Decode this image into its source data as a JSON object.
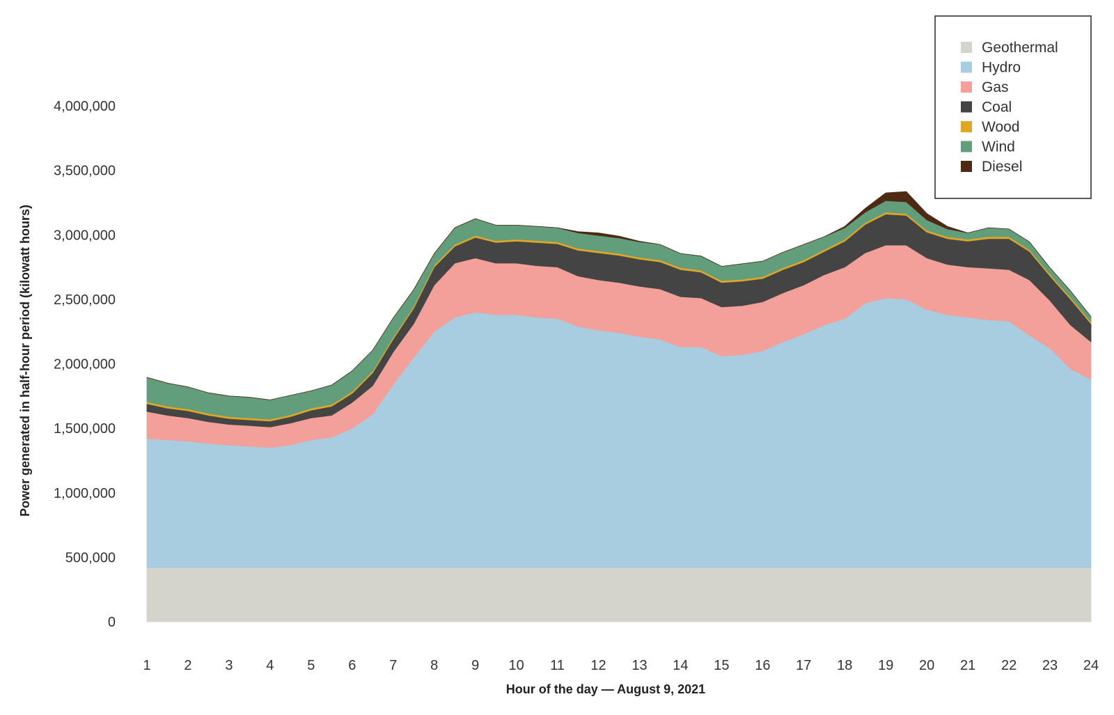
{
  "chart_data": {
    "type": "area",
    "stacked": true,
    "xlabel": "Hour of the day — August 9, 2021",
    "ylabel": "Power generated in half-hour period (kilowatt hours)",
    "x": [
      1,
      1.5,
      2,
      2.5,
      3,
      3.5,
      4,
      4.5,
      5,
      5.5,
      6,
      6.5,
      7,
      7.5,
      8,
      8.5,
      9,
      9.5,
      10,
      10.5,
      11,
      11.5,
      12,
      12.5,
      13,
      13.5,
      14,
      14.5,
      15,
      15.5,
      16,
      16.5,
      17,
      17.5,
      18,
      18.5,
      19,
      19.5,
      20,
      20.5,
      21,
      21.5,
      22,
      22.5,
      23,
      23.5,
      24
    ],
    "x_ticks": [
      "1",
      "2",
      "3",
      "4",
      "5",
      "6",
      "7",
      "8",
      "9",
      "10",
      "11",
      "12",
      "13",
      "14",
      "15",
      "16",
      "17",
      "18",
      "19",
      "20",
      "21",
      "22",
      "23",
      "24"
    ],
    "y_ticks": [
      "0",
      "500,000",
      "1,000,000",
      "1,500,000",
      "2,000,000",
      "2,500,000",
      "3,000,000",
      "3,500,000",
      "4,000,000"
    ],
    "ylim": [
      0,
      4000000
    ],
    "grid": false,
    "legend_position": "top-right",
    "series": [
      {
        "name": "Geothermal",
        "color": "#d4d4cc",
        "values": [
          420000,
          420000,
          420000,
          420000,
          420000,
          420000,
          420000,
          420000,
          420000,
          420000,
          420000,
          420000,
          420000,
          420000,
          420000,
          420000,
          420000,
          420000,
          420000,
          420000,
          420000,
          420000,
          420000,
          420000,
          420000,
          420000,
          420000,
          420000,
          420000,
          420000,
          420000,
          420000,
          420000,
          420000,
          420000,
          420000,
          420000,
          420000,
          420000,
          420000,
          420000,
          420000,
          420000,
          420000,
          420000,
          420000,
          420000
        ]
      },
      {
        "name": "Hydro",
        "color": "#a8cce0",
        "values": [
          1000000,
          990000,
          980000,
          960000,
          950000,
          940000,
          930000,
          950000,
          990000,
          1010000,
          1080000,
          1190000,
          1420000,
          1630000,
          1830000,
          1940000,
          1980000,
          1960000,
          1960000,
          1940000,
          1930000,
          1870000,
          1840000,
          1820000,
          1790000,
          1770000,
          1710000,
          1710000,
          1640000,
          1650000,
          1680000,
          1750000,
          1810000,
          1880000,
          1930000,
          2050000,
          2090000,
          2080000,
          2000000,
          1960000,
          1940000,
          1920000,
          1910000,
          1800000,
          1700000,
          1540000,
          1460000
        ]
      },
      {
        "name": "Gas",
        "color": "#f2a099",
        "values": [
          210000,
          190000,
          180000,
          170000,
          160000,
          160000,
          160000,
          170000,
          170000,
          170000,
          200000,
          220000,
          250000,
          260000,
          360000,
          420000,
          420000,
          400000,
          400000,
          400000,
          400000,
          390000,
          390000,
          390000,
          390000,
          390000,
          390000,
          380000,
          380000,
          380000,
          380000,
          380000,
          380000,
          390000,
          400000,
          390000,
          410000,
          420000,
          400000,
          390000,
          390000,
          400000,
          400000,
          430000,
          370000,
          340000,
          290000
        ]
      },
      {
        "name": "Coal",
        "color": "#444444",
        "values": [
          60000,
          55000,
          55000,
          50000,
          45000,
          45000,
          45000,
          50000,
          60000,
          70000,
          70000,
          100000,
          100000,
          120000,
          140000,
          130000,
          160000,
          160000,
          170000,
          180000,
          180000,
          200000,
          210000,
          210000,
          210000,
          210000,
          210000,
          200000,
          190000,
          190000,
          180000,
          180000,
          180000,
          180000,
          200000,
          220000,
          240000,
          230000,
          200000,
          200000,
          200000,
          230000,
          240000,
          220000,
          190000,
          200000,
          140000
        ]
      },
      {
        "name": "Wood",
        "color": "#e0a624",
        "values": [
          15000,
          15000,
          15000,
          15000,
          15000,
          15000,
          15000,
          15000,
          15000,
          15000,
          15000,
          15000,
          15000,
          15000,
          15000,
          15000,
          15000,
          15000,
          15000,
          15000,
          15000,
          15000,
          15000,
          15000,
          15000,
          15000,
          15000,
          15000,
          15000,
          15000,
          15000,
          15000,
          15000,
          15000,
          15000,
          15000,
          15000,
          15000,
          15000,
          15000,
          15000,
          15000,
          15000,
          15000,
          15000,
          15000,
          15000
        ]
      },
      {
        "name": "Wind",
        "color": "#629e7c",
        "values": [
          190000,
          180000,
          170000,
          160000,
          160000,
          160000,
          150000,
          150000,
          135000,
          150000,
          160000,
          160000,
          150000,
          130000,
          90000,
          130000,
          130000,
          120000,
          110000,
          110000,
          110000,
          120000,
          120000,
          120000,
          120000,
          120000,
          110000,
          110000,
          110000,
          120000,
          120000,
          120000,
          120000,
          100000,
          90000,
          80000,
          90000,
          90000,
          80000,
          60000,
          50000,
          70000,
          60000,
          60000,
          50000,
          50000,
          40000
        ]
      },
      {
        "name": "Diesel",
        "color": "#4e2a14",
        "values": [
          0,
          0,
          0,
          0,
          0,
          0,
          0,
          0,
          0,
          0,
          0,
          0,
          0,
          0,
          0,
          0,
          0,
          0,
          0,
          0,
          0,
          10000,
          20000,
          15000,
          5000,
          0,
          0,
          0,
          0,
          0,
          0,
          0,
          0,
          0,
          10000,
          30000,
          60000,
          80000,
          50000,
          20000,
          0,
          0,
          0,
          0,
          0,
          0,
          0
        ]
      }
    ]
  }
}
